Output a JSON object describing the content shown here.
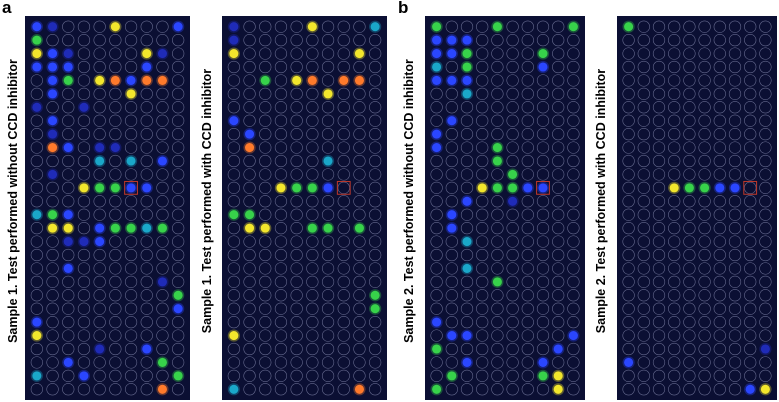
{
  "panel_a": {
    "letter": "a",
    "sample1_without": {
      "label": "Sample 1. Test performed without CCD inhibitor",
      "spots": [
        {
          "r": 0,
          "c": 0,
          "k": "blue"
        },
        {
          "r": 0,
          "c": 1,
          "k": "dim"
        },
        {
          "r": 0,
          "c": 5,
          "k": "yellow"
        },
        {
          "r": 0,
          "c": 9,
          "k": "blue"
        },
        {
          "r": 1,
          "c": 0,
          "k": "green"
        },
        {
          "r": 2,
          "c": 0,
          "k": "yellow"
        },
        {
          "r": 2,
          "c": 1,
          "k": "blue"
        },
        {
          "r": 2,
          "c": 2,
          "k": "dim"
        },
        {
          "r": 2,
          "c": 7,
          "k": "yellow"
        },
        {
          "r": 2,
          "c": 8,
          "k": "dim"
        },
        {
          "r": 3,
          "c": 0,
          "k": "blue"
        },
        {
          "r": 3,
          "c": 1,
          "k": "blue"
        },
        {
          "r": 3,
          "c": 2,
          "k": "blue"
        },
        {
          "r": 3,
          "c": 7,
          "k": "blue"
        },
        {
          "r": 4,
          "c": 1,
          "k": "blue"
        },
        {
          "r": 4,
          "c": 2,
          "k": "green"
        },
        {
          "r": 4,
          "c": 4,
          "k": "yellow"
        },
        {
          "r": 4,
          "c": 5,
          "k": "orange"
        },
        {
          "r": 4,
          "c": 6,
          "k": "blue"
        },
        {
          "r": 4,
          "c": 7,
          "k": "orange"
        },
        {
          "r": 4,
          "c": 8,
          "k": "orange"
        },
        {
          "r": 5,
          "c": 1,
          "k": "blue"
        },
        {
          "r": 5,
          "c": 6,
          "k": "yellow"
        },
        {
          "r": 6,
          "c": 0,
          "k": "dim"
        },
        {
          "r": 6,
          "c": 3,
          "k": "dim"
        },
        {
          "r": 7,
          "c": 1,
          "k": "blue"
        },
        {
          "r": 8,
          "c": 1,
          "k": "dim"
        },
        {
          "r": 9,
          "c": 1,
          "k": "orange"
        },
        {
          "r": 9,
          "c": 2,
          "k": "blue"
        },
        {
          "r": 9,
          "c": 4,
          "k": "dim"
        },
        {
          "r": 9,
          "c": 5,
          "k": "dim"
        },
        {
          "r": 10,
          "c": 4,
          "k": "cyan"
        },
        {
          "r": 10,
          "c": 6,
          "k": "cyan"
        },
        {
          "r": 10,
          "c": 8,
          "k": "blue"
        },
        {
          "r": 11,
          "c": 1,
          "k": "dim"
        },
        {
          "r": 12,
          "c": 3,
          "k": "yellow"
        },
        {
          "r": 12,
          "c": 4,
          "k": "green"
        },
        {
          "r": 12,
          "c": 5,
          "k": "green"
        },
        {
          "r": 12,
          "c": 6,
          "k": "blue"
        },
        {
          "r": 12,
          "c": 7,
          "k": "blue"
        },
        {
          "r": 14,
          "c": 0,
          "k": "cyan"
        },
        {
          "r": 14,
          "c": 1,
          "k": "green"
        },
        {
          "r": 14,
          "c": 2,
          "k": "blue"
        },
        {
          "r": 15,
          "c": 1,
          "k": "yellow"
        },
        {
          "r": 15,
          "c": 2,
          "k": "yellow"
        },
        {
          "r": 15,
          "c": 4,
          "k": "blue"
        },
        {
          "r": 15,
          "c": 5,
          "k": "green"
        },
        {
          "r": 15,
          "c": 6,
          "k": "green"
        },
        {
          "r": 15,
          "c": 7,
          "k": "cyan"
        },
        {
          "r": 15,
          "c": 8,
          "k": "green"
        },
        {
          "r": 16,
          "c": 2,
          "k": "dim"
        },
        {
          "r": 16,
          "c": 3,
          "k": "dim"
        },
        {
          "r": 16,
          "c": 4,
          "k": "blue"
        },
        {
          "r": 18,
          "c": 2,
          "k": "blue"
        },
        {
          "r": 19,
          "c": 8,
          "k": "dim"
        },
        {
          "r": 20,
          "c": 9,
          "k": "green"
        },
        {
          "r": 21,
          "c": 9,
          "k": "blue"
        },
        {
          "r": 22,
          "c": 0,
          "k": "blue"
        },
        {
          "r": 23,
          "c": 0,
          "k": "yellow"
        },
        {
          "r": 24,
          "c": 4,
          "k": "dim"
        },
        {
          "r": 24,
          "c": 7,
          "k": "blue"
        },
        {
          "r": 25,
          "c": 2,
          "k": "blue"
        },
        {
          "r": 25,
          "c": 8,
          "k": "green"
        },
        {
          "r": 26,
          "c": 0,
          "k": "cyan"
        },
        {
          "r": 26,
          "c": 3,
          "k": "blue"
        },
        {
          "r": 26,
          "c": 9,
          "k": "green"
        },
        {
          "r": 27,
          "c": 8,
          "k": "orange"
        }
      ]
    },
    "sample1_with": {
      "label": "Sample 1. Test performed with CCD inhibitor",
      "spots": [
        {
          "r": 0,
          "c": 0,
          "k": "dim"
        },
        {
          "r": 0,
          "c": 5,
          "k": "yellow"
        },
        {
          "r": 0,
          "c": 9,
          "k": "cyan"
        },
        {
          "r": 1,
          "c": 0,
          "k": "dim"
        },
        {
          "r": 2,
          "c": 0,
          "k": "yellow"
        },
        {
          "r": 2,
          "c": 8,
          "k": "yellow"
        },
        {
          "r": 4,
          "c": 2,
          "k": "green"
        },
        {
          "r": 4,
          "c": 4,
          "k": "yellow"
        },
        {
          "r": 4,
          "c": 5,
          "k": "orange"
        },
        {
          "r": 4,
          "c": 7,
          "k": "orange"
        },
        {
          "r": 4,
          "c": 8,
          "k": "orange"
        },
        {
          "r": 5,
          "c": 6,
          "k": "yellow"
        },
        {
          "r": 7,
          "c": 0,
          "k": "blue"
        },
        {
          "r": 8,
          "c": 1,
          "k": "blue"
        },
        {
          "r": 9,
          "c": 1,
          "k": "orange"
        },
        {
          "r": 10,
          "c": 6,
          "k": "cyan"
        },
        {
          "r": 12,
          "c": 3,
          "k": "yellow"
        },
        {
          "r": 12,
          "c": 4,
          "k": "green"
        },
        {
          "r": 12,
          "c": 5,
          "k": "green"
        },
        {
          "r": 12,
          "c": 6,
          "k": "blue"
        },
        {
          "r": 14,
          "c": 0,
          "k": "green"
        },
        {
          "r": 14,
          "c": 1,
          "k": "green"
        },
        {
          "r": 15,
          "c": 1,
          "k": "yellow"
        },
        {
          "r": 15,
          "c": 2,
          "k": "yellow"
        },
        {
          "r": 15,
          "c": 5,
          "k": "green"
        },
        {
          "r": 15,
          "c": 6,
          "k": "green"
        },
        {
          "r": 15,
          "c": 8,
          "k": "green"
        },
        {
          "r": 20,
          "c": 9,
          "k": "green"
        },
        {
          "r": 21,
          "c": 9,
          "k": "green"
        },
        {
          "r": 23,
          "c": 0,
          "k": "yellow"
        },
        {
          "r": 27,
          "c": 0,
          "k": "cyan"
        },
        {
          "r": 27,
          "c": 8,
          "k": "orange"
        }
      ]
    }
  },
  "panel_b": {
    "letter": "b",
    "sample2_without": {
      "label": "Sample 2. Test performed without CCD inhibitor",
      "spots": [
        {
          "r": 0,
          "c": 0,
          "k": "green"
        },
        {
          "r": 0,
          "c": 4,
          "k": "green"
        },
        {
          "r": 0,
          "c": 9,
          "k": "green"
        },
        {
          "r": 1,
          "c": 0,
          "k": "blue"
        },
        {
          "r": 1,
          "c": 1,
          "k": "blue"
        },
        {
          "r": 1,
          "c": 2,
          "k": "blue"
        },
        {
          "r": 2,
          "c": 0,
          "k": "blue"
        },
        {
          "r": 2,
          "c": 1,
          "k": "blue"
        },
        {
          "r": 2,
          "c": 2,
          "k": "green"
        },
        {
          "r": 2,
          "c": 7,
          "k": "green"
        },
        {
          "r": 3,
          "c": 0,
          "k": "cyan"
        },
        {
          "r": 3,
          "c": 2,
          "k": "green"
        },
        {
          "r": 3,
          "c": 7,
          "k": "blue"
        },
        {
          "r": 4,
          "c": 0,
          "k": "blue"
        },
        {
          "r": 4,
          "c": 1,
          "k": "blue"
        },
        {
          "r": 4,
          "c": 2,
          "k": "blue"
        },
        {
          "r": 5,
          "c": 2,
          "k": "cyan"
        },
        {
          "r": 7,
          "c": 1,
          "k": "blue"
        },
        {
          "r": 8,
          "c": 0,
          "k": "blue"
        },
        {
          "r": 9,
          "c": 4,
          "k": "green"
        },
        {
          "r": 9,
          "c": 0,
          "k": "blue"
        },
        {
          "r": 10,
          "c": 4,
          "k": "green"
        },
        {
          "r": 11,
          "c": 5,
          "k": "green"
        },
        {
          "r": 12,
          "c": 3,
          "k": "yellow"
        },
        {
          "r": 12,
          "c": 4,
          "k": "green"
        },
        {
          "r": 12,
          "c": 5,
          "k": "green"
        },
        {
          "r": 12,
          "c": 6,
          "k": "blue"
        },
        {
          "r": 12,
          "c": 7,
          "k": "blue"
        },
        {
          "r": 13,
          "c": 2,
          "k": "blue"
        },
        {
          "r": 13,
          "c": 5,
          "k": "dim"
        },
        {
          "r": 14,
          "c": 1,
          "k": "blue"
        },
        {
          "r": 15,
          "c": 1,
          "k": "blue"
        },
        {
          "r": 16,
          "c": 2,
          "k": "cyan"
        },
        {
          "r": 18,
          "c": 2,
          "k": "cyan"
        },
        {
          "r": 19,
          "c": 4,
          "k": "green"
        },
        {
          "r": 22,
          "c": 0,
          "k": "blue"
        },
        {
          "r": 23,
          "c": 1,
          "k": "blue"
        },
        {
          "r": 23,
          "c": 2,
          "k": "blue"
        },
        {
          "r": 23,
          "c": 9,
          "k": "blue"
        },
        {
          "r": 24,
          "c": 0,
          "k": "green"
        },
        {
          "r": 24,
          "c": 8,
          "k": "blue"
        },
        {
          "r": 25,
          "c": 2,
          "k": "blue"
        },
        {
          "r": 25,
          "c": 7,
          "k": "blue"
        },
        {
          "r": 26,
          "c": 1,
          "k": "green"
        },
        {
          "r": 26,
          "c": 7,
          "k": "green"
        },
        {
          "r": 26,
          "c": 8,
          "k": "yellow"
        },
        {
          "r": 27,
          "c": 0,
          "k": "green"
        },
        {
          "r": 27,
          "c": 8,
          "k": "yellow"
        }
      ]
    },
    "sample2_with": {
      "label": "Sample 2. Test performed with CCD inhibitor",
      "spots": [
        {
          "r": 0,
          "c": 0,
          "k": "green"
        },
        {
          "r": 12,
          "c": 3,
          "k": "yellow"
        },
        {
          "r": 12,
          "c": 4,
          "k": "green"
        },
        {
          "r": 12,
          "c": 5,
          "k": "green"
        },
        {
          "r": 12,
          "c": 6,
          "k": "blue"
        },
        {
          "r": 12,
          "c": 7,
          "k": "blue"
        },
        {
          "r": 24,
          "c": 9,
          "k": "dim"
        },
        {
          "r": 25,
          "c": 0,
          "k": "blue"
        },
        {
          "r": 27,
          "c": 9,
          "k": "yellow"
        },
        {
          "r": 27,
          "c": 8,
          "k": "blue"
        }
      ]
    }
  },
  "spot_colors": {
    "dim": "#1f2bb8",
    "blue": "#2a46ff",
    "cyan": "#1aa7c9",
    "green": "#37d24a",
    "yellow": "#f2e62c",
    "orange": "#ff7a2b"
  },
  "plate_background": "#0b0f33",
  "well_outline": "#8e93b8",
  "marker_color": "#c0392b"
}
